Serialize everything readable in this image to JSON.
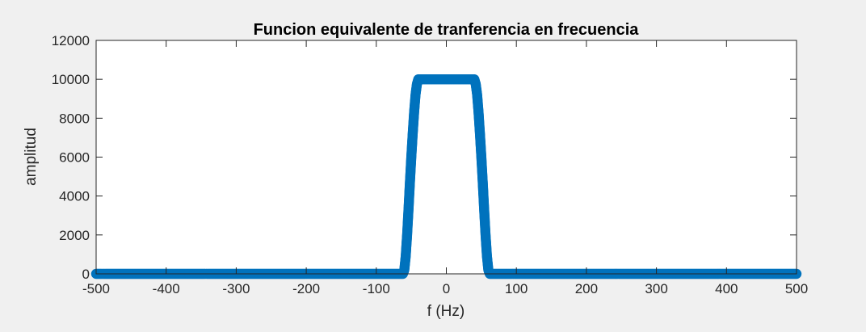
{
  "chart_data": {
    "type": "scatter",
    "title": "Funcion equivalente de tranferencia en frecuencia",
    "xlabel": "f (Hz)",
    "ylabel": "amplitud",
    "xlim": [
      -500,
      500
    ],
    "ylim": [
      0,
      12000
    ],
    "xticks": [
      -500,
      -400,
      -300,
      -200,
      -100,
      0,
      100,
      200,
      300,
      400,
      500
    ],
    "yticks": [
      0,
      2000,
      4000,
      6000,
      8000,
      10000,
      12000
    ],
    "grid": false,
    "series": [
      {
        "color": "#0072bd",
        "marker": "circle",
        "description_points": "trapezoidal band-pass magnitude",
        "x": [
          -500,
          -62,
          -60,
          -58,
          -56,
          -54,
          -52,
          -50,
          -48,
          -46,
          -44,
          -42,
          -40,
          -38,
          -36,
          36,
          38,
          40,
          42,
          44,
          46,
          48,
          50,
          52,
          54,
          56,
          58,
          60,
          62,
          500
        ],
        "y": [
          0,
          0,
          200,
          900,
          2000,
          3300,
          4700,
          6000,
          7200,
          8300,
          9200,
          9750,
          10000,
          10000,
          10000,
          10000,
          10000,
          10000,
          9750,
          9200,
          8300,
          7200,
          6000,
          4700,
          3300,
          2000,
          900,
          200,
          0,
          0
        ]
      }
    ]
  },
  "colors": {
    "figure_background": "#f0f0f0",
    "axes_background": "#ffffff",
    "series": "#0072bd"
  }
}
